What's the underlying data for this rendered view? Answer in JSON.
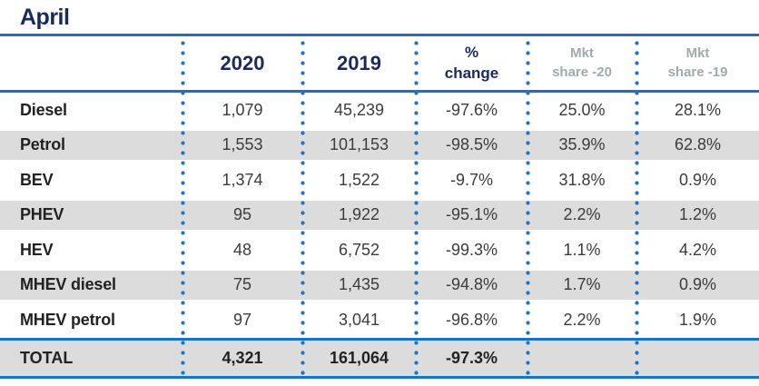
{
  "title": "April",
  "colors": {
    "accent_blue": "#1a72c4",
    "dot_blue": "#1b74cc",
    "navy_text": "#1b2a5b",
    "stripe_gray": "#dcdcdc",
    "muted_header_gray": "#a4a8ac",
    "label_black": "#222222",
    "value_gray": "#3c3c3c"
  },
  "header": {
    "year_2020": "2020",
    "year_2019": "2019",
    "pct_change_line1": "%",
    "pct_change_line2": "change",
    "mkt_20_line1": "Mkt",
    "mkt_20_line2": "share -20",
    "mkt_19_line1": "Mkt",
    "mkt_19_line2": "share -19"
  },
  "chart_data": {
    "type": "table",
    "title": "April",
    "columns": [
      "",
      "2020",
      "2019",
      "% change",
      "Mkt share -20",
      "Mkt share -19"
    ],
    "rows": [
      {
        "label": "Diesel",
        "y2020": "1,079",
        "y2019": "45,239",
        "pct_change": "-97.6%",
        "mkt_share_20": "25.0%",
        "mkt_share_19": "28.1%"
      },
      {
        "label": "Petrol",
        "y2020": "1,553",
        "y2019": "101,153",
        "pct_change": "-98.5%",
        "mkt_share_20": "35.9%",
        "mkt_share_19": "62.8%"
      },
      {
        "label": "BEV",
        "y2020": "1,374",
        "y2019": "1,522",
        "pct_change": "-9.7%",
        "mkt_share_20": "31.8%",
        "mkt_share_19": "0.9%"
      },
      {
        "label": "PHEV",
        "y2020": "95",
        "y2019": "1,922",
        "pct_change": "-95.1%",
        "mkt_share_20": "2.2%",
        "mkt_share_19": "1.2%"
      },
      {
        "label": "HEV",
        "y2020": "48",
        "y2019": "6,752",
        "pct_change": "-99.3%",
        "mkt_share_20": "1.1%",
        "mkt_share_19": "4.2%"
      },
      {
        "label": "MHEV diesel",
        "y2020": "75",
        "y2019": "1,435",
        "pct_change": "-94.8%",
        "mkt_share_20": "1.7%",
        "mkt_share_19": "0.9%"
      },
      {
        "label": "MHEV petrol",
        "y2020": "97",
        "y2019": "3,041",
        "pct_change": "-96.8%",
        "mkt_share_20": "2.2%",
        "mkt_share_19": "1.9%"
      }
    ],
    "total": {
      "label": "TOTAL",
      "y2020": "4,321",
      "y2019": "161,064",
      "pct_change": "-97.3%",
      "mkt_share_20": "",
      "mkt_share_19": ""
    }
  }
}
